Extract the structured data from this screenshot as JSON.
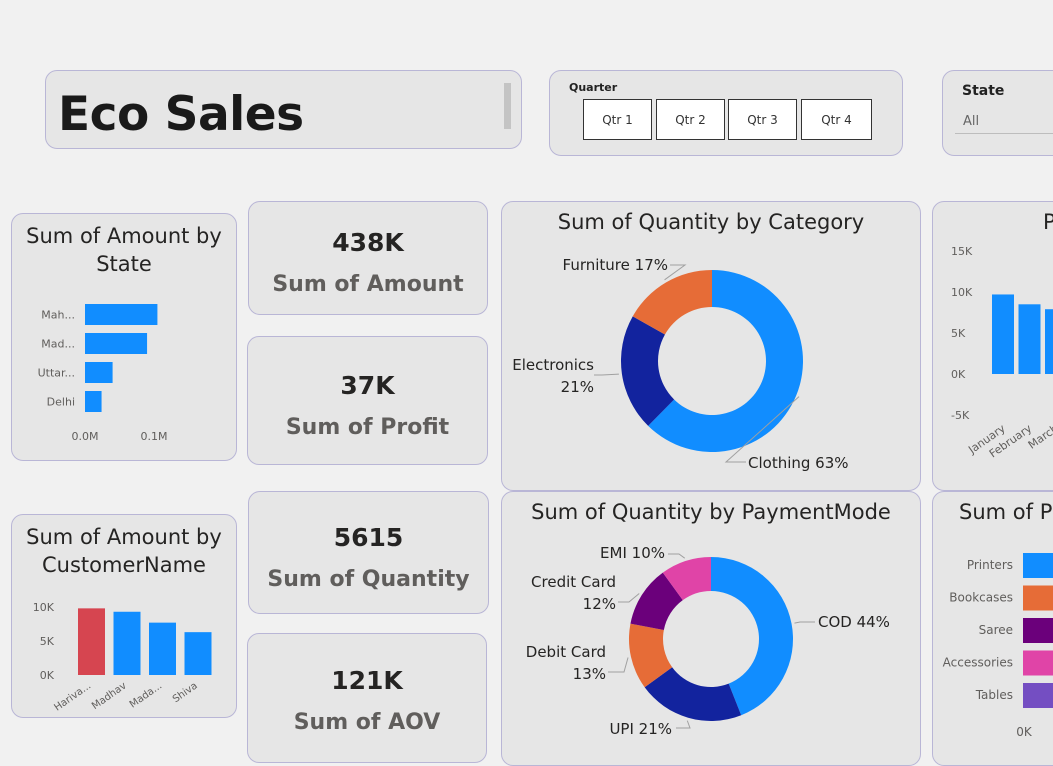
{
  "title": "Eco Sales",
  "quarter_slicer": {
    "label": "Quarter",
    "options": [
      "Qtr 1",
      "Qtr 2",
      "Qtr 3",
      "Qtr 4"
    ]
  },
  "state_slicer": {
    "label": "State",
    "value": "All"
  },
  "kpis": {
    "amount": {
      "value": "438K",
      "label": "Sum of Amount"
    },
    "profit": {
      "value": "37K",
      "label": "Sum of Profit"
    },
    "quantity": {
      "value": "5615",
      "label": "Sum of Quantity"
    },
    "aov": {
      "value": "121K",
      "label": "Sum of AOV"
    }
  },
  "charts": {
    "amount_by_state": {
      "title": "Sum of Amount by State"
    },
    "amount_by_customer": {
      "title": "Sum of Amount by CustomerName"
    },
    "qty_by_category": {
      "title": "Sum of Quantity by Category"
    },
    "qty_by_payment": {
      "title": "Sum of Quantity by PaymentMode"
    },
    "profit_by_month": {
      "title": "P"
    },
    "qty_by_subcategory": {
      "title": "Sum of P"
    }
  },
  "chart_data": [
    {
      "id": "amount_by_state",
      "type": "bar",
      "orientation": "horizontal",
      "categories": [
        "Mah...",
        "Mad...",
        "Uttar...",
        "Delhi"
      ],
      "values": [
        0.105,
        0.09,
        0.04,
        0.024
      ],
      "x_ticks": [
        "0.0M",
        "0.1M"
      ],
      "xlim": [
        0,
        0.145
      ],
      "color": "#118dff"
    },
    {
      "id": "amount_by_customer",
      "type": "bar",
      "categories": [
        "Hariva...",
        "Madhav",
        "Mada...",
        "Shiva"
      ],
      "values": [
        9800,
        9300,
        7700,
        6300
      ],
      "colors": [
        "#d64550",
        "#118dff",
        "#118dff",
        "#118dff"
      ],
      "y_ticks": [
        "0K",
        "5K",
        "10K"
      ],
      "ylim": [
        0,
        10000
      ]
    },
    {
      "id": "qty_by_category",
      "type": "pie",
      "donut": true,
      "slices": [
        {
          "label": "Clothing",
          "pct": "63%",
          "value": 63,
          "color": "#118dff"
        },
        {
          "label": "Electronics",
          "pct": "21%",
          "value": 21,
          "color": "#12239e"
        },
        {
          "label": "Furniture",
          "pct": "17%",
          "value": 17,
          "color": "#e66c37"
        }
      ]
    },
    {
      "id": "qty_by_payment",
      "type": "pie",
      "donut": true,
      "slices": [
        {
          "label": "COD",
          "pct": "44%",
          "value": 44,
          "color": "#118dff"
        },
        {
          "label": "UPI",
          "pct": "21%",
          "value": 21,
          "color": "#12239e"
        },
        {
          "label": "Debit Card",
          "pct": "13%",
          "value": 13,
          "color": "#e66c37"
        },
        {
          "label": "Credit Card",
          "pct": "12%",
          "value": 12,
          "color": "#6b007b"
        },
        {
          "label": "EMI",
          "pct": "10%",
          "value": 10,
          "color": "#e044a7"
        }
      ]
    },
    {
      "id": "profit_by_month",
      "type": "bar",
      "categories": [
        "January",
        "February",
        "March"
      ],
      "values": [
        9700,
        8500,
        7900
      ],
      "y_ticks": [
        "15K",
        "10K",
        "5K",
        "0K",
        "-5K"
      ],
      "ylim": [
        -5000,
        15000
      ],
      "color": "#118dff"
    },
    {
      "id": "qty_by_subcategory",
      "type": "bar",
      "orientation": "horizontal",
      "categories": [
        "Printers",
        "Bookcases",
        "Saree",
        "Accessories",
        "Tables"
      ],
      "colors": [
        "#118dff",
        "#e66c37",
        "#6b007b",
        "#e044a7",
        "#744ec2"
      ],
      "x_ticks": [
        "0K"
      ]
    }
  ]
}
